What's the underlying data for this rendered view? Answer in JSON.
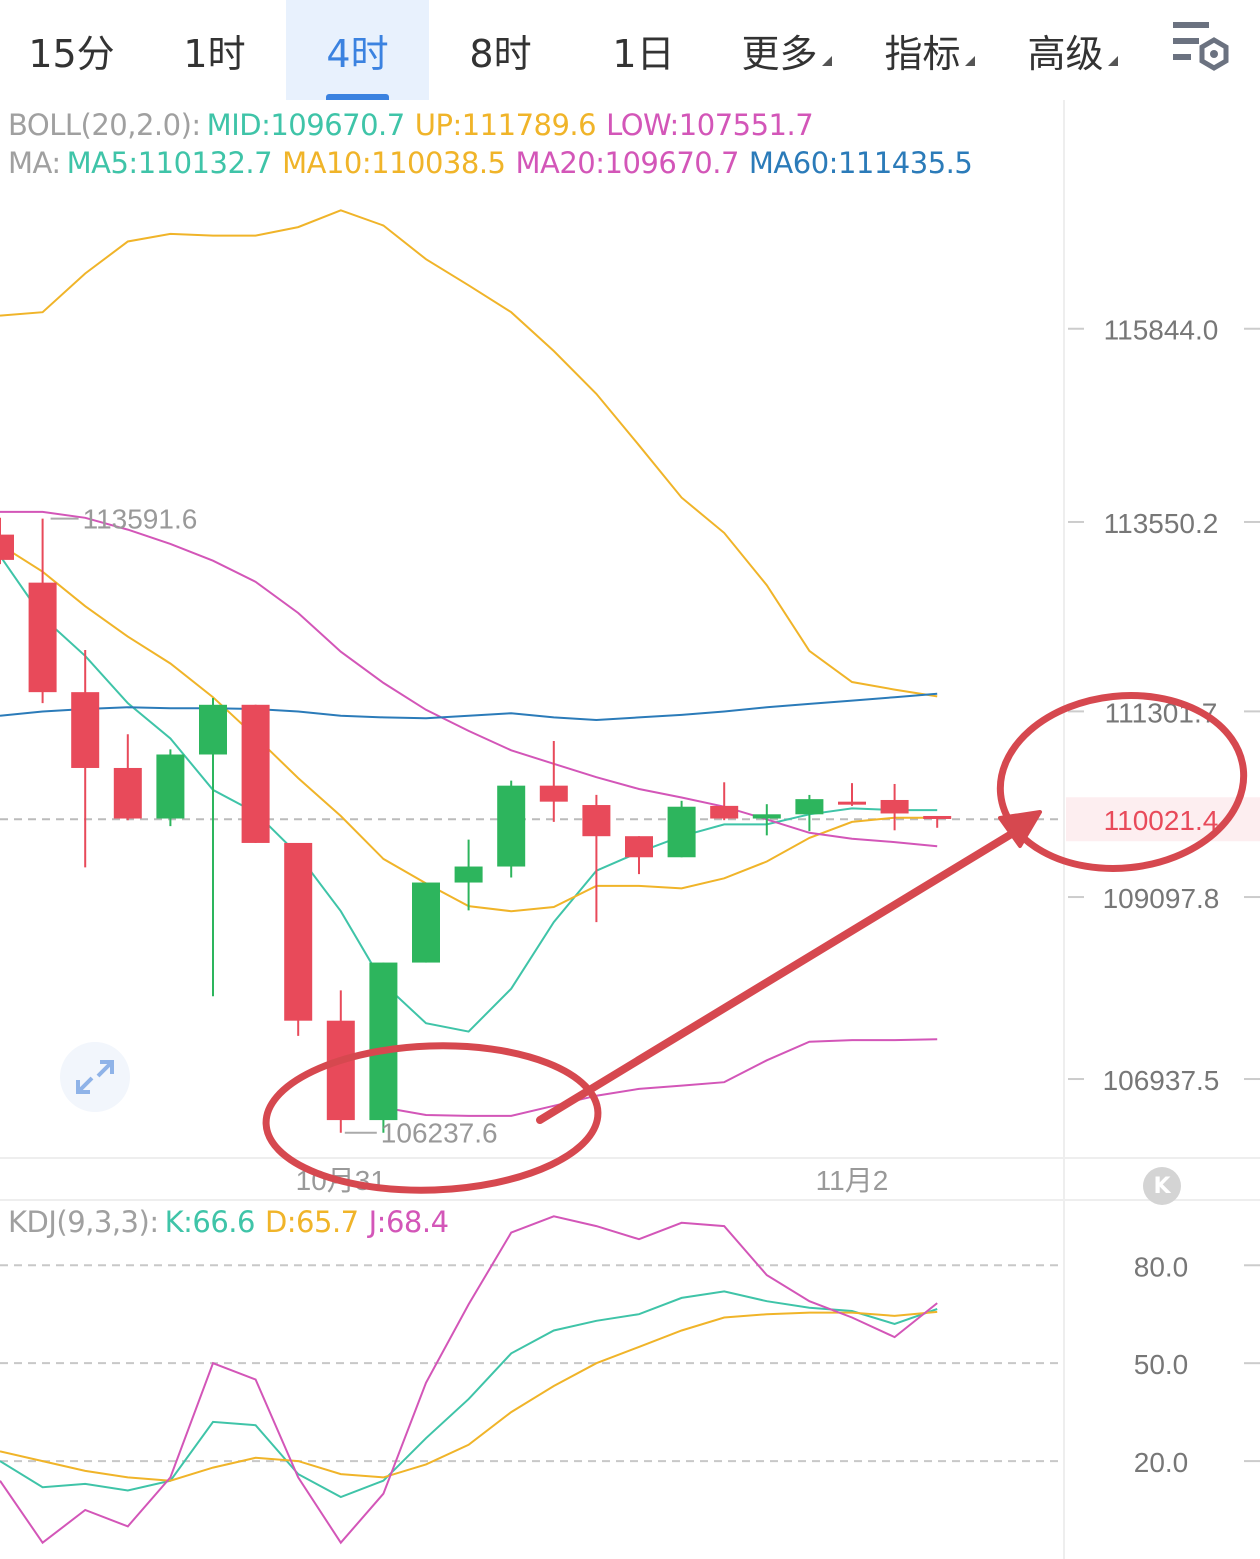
{
  "tabs": [
    {
      "label": "15分",
      "active": false,
      "dropdown": false
    },
    {
      "label": "1时",
      "active": false,
      "dropdown": false
    },
    {
      "label": "4时",
      "active": true,
      "dropdown": false
    },
    {
      "label": "8时",
      "active": false,
      "dropdown": false
    },
    {
      "label": "1日",
      "active": false,
      "dropdown": false
    },
    {
      "label": "更多",
      "active": false,
      "dropdown": true
    },
    {
      "label": "指标",
      "active": false,
      "dropdown": true
    },
    {
      "label": "高级",
      "active": false,
      "dropdown": true
    }
  ],
  "settings_icon": "chart-settings-icon",
  "boll_legend": {
    "name": "BOLL(20,2.0):",
    "mid": "MID:109670.7",
    "up": "UP:111789.6",
    "low": "LOW:107551.7"
  },
  "ma_legend": {
    "name": "MA:",
    "ma5": "MA5:110132.7",
    "ma10": "MA10:110038.5",
    "ma20": "MA20:109670.7",
    "ma60": "MA60:111435.5"
  },
  "kdj_legend": {
    "name": "KDJ(9,3,3):",
    "k": "K:66.6",
    "d": "D:65.7",
    "j": "J:68.4"
  },
  "colors": {
    "up": "#2db55d",
    "down": "#e84a5a",
    "ma5": "#3fc4a8",
    "ma10": "#f0b429",
    "ma20": "#d356b8",
    "ma60": "#2b7bb9",
    "annotation": "#d6484f",
    "accent": "#3b82e0"
  },
  "rewind_icon": "rewind-icon",
  "expand_icon": "expand-icon",
  "chart_data": [
    {
      "type": "candlestick",
      "price_axis": {
        "ticks": [
          "115844.0",
          "113550.2",
          "111301.7",
          "109097.8",
          "106937.5"
        ],
        "ylim": [
          106000,
          118500
        ]
      },
      "x_labels": [
        {
          "index": 8,
          "label": "10月31"
        },
        {
          "index": 20,
          "label": "11月2"
        }
      ],
      "current_price": "110021.4",
      "high_marker": {
        "index": 1,
        "label": "113591.6"
      },
      "low_marker": {
        "index": 8,
        "label": "106237.6"
      },
      "candles": [
        {
          "o": 113400,
          "h": 113600,
          "l": 113050,
          "c": 113100
        },
        {
          "o": 112830,
          "h": 113590,
          "l": 111400,
          "c": 111530
        },
        {
          "o": 111530,
          "h": 112030,
          "l": 109450,
          "c": 110630
        },
        {
          "o": 110630,
          "h": 111030,
          "l": 110010,
          "c": 110030
        },
        {
          "o": 110030,
          "h": 110850,
          "l": 109940,
          "c": 110790
        },
        {
          "o": 110790,
          "h": 111460,
          "l": 107920,
          "c": 111380
        },
        {
          "o": 111380,
          "h": 111380,
          "l": 109740,
          "c": 109740
        },
        {
          "o": 109740,
          "h": 109740,
          "l": 107450,
          "c": 107630
        },
        {
          "o": 107630,
          "h": 107990,
          "l": 106300,
          "c": 106450
        },
        {
          "o": 106450,
          "h": 108320,
          "l": 106300,
          "c": 108320
        },
        {
          "o": 108320,
          "h": 109270,
          "l": 108320,
          "c": 109270
        },
        {
          "o": 109270,
          "h": 109780,
          "l": 108940,
          "c": 109460
        },
        {
          "o": 109460,
          "h": 110480,
          "l": 109330,
          "c": 110420
        },
        {
          "o": 110420,
          "h": 110950,
          "l": 109990,
          "c": 110230
        },
        {
          "o": 110190,
          "h": 110310,
          "l": 108800,
          "c": 109820
        },
        {
          "o": 109820,
          "h": 109820,
          "l": 109370,
          "c": 109570
        },
        {
          "o": 109570,
          "h": 110240,
          "l": 109570,
          "c": 110170
        },
        {
          "o": 110180,
          "h": 110460,
          "l": 110010,
          "c": 110030
        },
        {
          "o": 110030,
          "h": 110200,
          "l": 109830,
          "c": 110080
        },
        {
          "o": 110080,
          "h": 110310,
          "l": 109880,
          "c": 110260
        },
        {
          "o": 110230,
          "h": 110450,
          "l": 110180,
          "c": 110200
        },
        {
          "o": 110250,
          "h": 110440,
          "l": 109890,
          "c": 110090
        },
        {
          "o": 110060,
          "h": 110060,
          "l": 109920,
          "c": 110030
        }
      ],
      "series": [
        {
          "name": "UP",
          "values": [
            116000,
            116040,
            116500,
            116880,
            116970,
            116950,
            116950,
            117050,
            117250,
            117070,
            116670,
            116360,
            116040,
            115580,
            115070,
            114460,
            113840,
            113420,
            112800,
            112020,
            111650,
            111560,
            111480
          ]
        },
        {
          "name": "MA5",
          "values": [
            113150,
            112420,
            111960,
            111400,
            110980,
            110370,
            110100,
            109600,
            108930,
            108070,
            107600,
            107500,
            108010,
            108800,
            109410,
            109630,
            109820,
            109960,
            109960,
            110080,
            110150,
            110130,
            110130
          ]
        },
        {
          "name": "MA10",
          "values": [
            113280,
            112960,
            112550,
            112190,
            111870,
            111470,
            111000,
            110510,
            110060,
            109550,
            109260,
            108990,
            108930,
            108980,
            109230,
            109230,
            109200,
            109320,
            109520,
            109800,
            109990,
            110040,
            110040
          ]
        },
        {
          "name": "MA20",
          "values": [
            113670,
            113670,
            113600,
            113460,
            113290,
            113090,
            112840,
            112470,
            112010,
            111640,
            111320,
            111070,
            110840,
            110680,
            110520,
            110380,
            110280,
            110170,
            110020,
            109860,
            109790,
            109750,
            109700
          ]
        },
        {
          "name": "MA60",
          "values": [
            111250,
            111300,
            111330,
            111350,
            111340,
            111340,
            111330,
            111300,
            111250,
            111230,
            111220,
            111250,
            111280,
            111230,
            111200,
            111230,
            111260,
            111300,
            111350,
            111390,
            111430,
            111470,
            111510
          ]
        },
        {
          "name": "LOW",
          "values": [
            null,
            null,
            null,
            null,
            null,
            null,
            null,
            null,
            null,
            106600,
            106510,
            106500,
            106500,
            106620,
            106740,
            106820,
            106860,
            106900,
            107160,
            107380,
            107400,
            107400,
            107410
          ]
        }
      ]
    },
    {
      "type": "line",
      "name": "KDJ",
      "y_ticks": [
        "80.0",
        "50.0",
        "20.0"
      ],
      "ylim": [
        -10,
        100
      ],
      "series": [
        {
          "name": "K",
          "values": [
            20,
            12,
            13,
            11,
            14,
            32,
            31,
            16,
            9,
            14,
            27,
            39,
            53,
            60,
            63,
            65,
            70,
            72,
            69,
            67,
            66,
            62,
            66.6
          ]
        },
        {
          "name": "D",
          "values": [
            23,
            20,
            17,
            15,
            14,
            18,
            21,
            20,
            16,
            15,
            19,
            25,
            35,
            43,
            50,
            55,
            60,
            64,
            65,
            65.5,
            65.5,
            64.5,
            65.7
          ]
        },
        {
          "name": "J",
          "values": [
            14,
            -5,
            5,
            0,
            15,
            50,
            45,
            15,
            -5,
            10,
            44,
            68,
            90,
            95,
            92,
            88,
            93,
            92,
            77,
            69,
            64,
            58,
            68.4
          ]
        }
      ]
    }
  ]
}
